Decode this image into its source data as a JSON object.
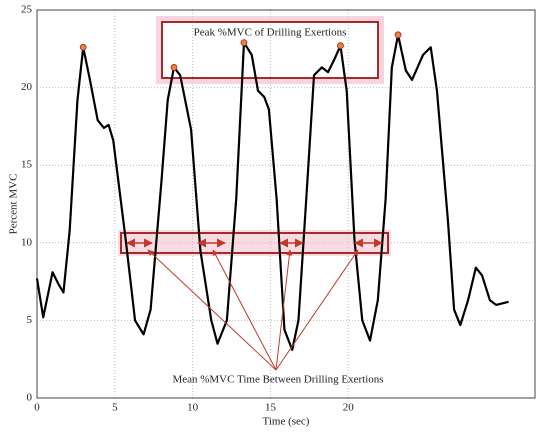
{
  "chart_data": {
    "type": "line",
    "x_label": "Time (sec)",
    "y_label": "Percent MVC",
    "xlim": [
      0,
      32
    ],
    "xticks": [
      0,
      5,
      10,
      15,
      20
    ],
    "ylim": [
      0,
      25
    ],
    "yticks": [
      0,
      5,
      10,
      15,
      20,
      25
    ],
    "grid": true,
    "series": [
      {
        "color": "#000000",
        "x": [
          0,
          0.4,
          1.0,
          1.4,
          1.7,
          2.1,
          2.6,
          2.97,
          3.4,
          3.9,
          4.3,
          4.6,
          4.9,
          5.7,
          6.3,
          6.85,
          7.3,
          8.0,
          8.4,
          8.8,
          9.2,
          9.9,
          10.5,
          11.2,
          11.6,
          12.2,
          12.8,
          13.3,
          13.8,
          14.2,
          14.6,
          14.9,
          15.4,
          15.9,
          16.4,
          16.8,
          17.3,
          17.8,
          18.3,
          18.7,
          19.1,
          19.5,
          19.9,
          20.4,
          20.9,
          21.4,
          21.9,
          22.4,
          22.8,
          23.2,
          23.7,
          24.1,
          24.8,
          25.3,
          25.7,
          26.4,
          26.8,
          27.2,
          27.7,
          28.2,
          28.6,
          29.1,
          29.5,
          30.3
        ],
        "values": [
          7.7,
          5.2,
          8.1,
          7.3,
          6.8,
          10.8,
          19.2,
          22.6,
          20.5,
          17.9,
          17.4,
          17.6,
          16.6,
          10.2,
          5.0,
          4.1,
          5.7,
          14.0,
          19.2,
          21.3,
          20.8,
          17.3,
          9.5,
          5.0,
          3.5,
          5.0,
          12.8,
          22.9,
          22.1,
          19.8,
          19.4,
          18.6,
          12.8,
          4.4,
          3.1,
          5.0,
          12.8,
          20.8,
          21.3,
          21.0,
          21.8,
          22.7,
          19.8,
          10.2,
          5.0,
          3.7,
          6.3,
          12.8,
          21.3,
          23.4,
          21.1,
          20.5,
          22.1,
          22.6,
          19.8,
          11.5,
          5.7,
          4.7,
          6.3,
          8.4,
          7.9,
          6.3,
          6.0,
          6.2
        ]
      }
    ],
    "peaks": {
      "color": "#e8823a",
      "x": [
        2.97,
        8.8,
        13.3,
        19.5,
        23.2
      ],
      "values": [
        22.6,
        21.3,
        22.9,
        22.7,
        23.4
      ]
    },
    "annotations": [
      "Peak %MVC of Drilling Exertions",
      "Mean %MVC Time Between Drilling Exertions"
    ]
  }
}
